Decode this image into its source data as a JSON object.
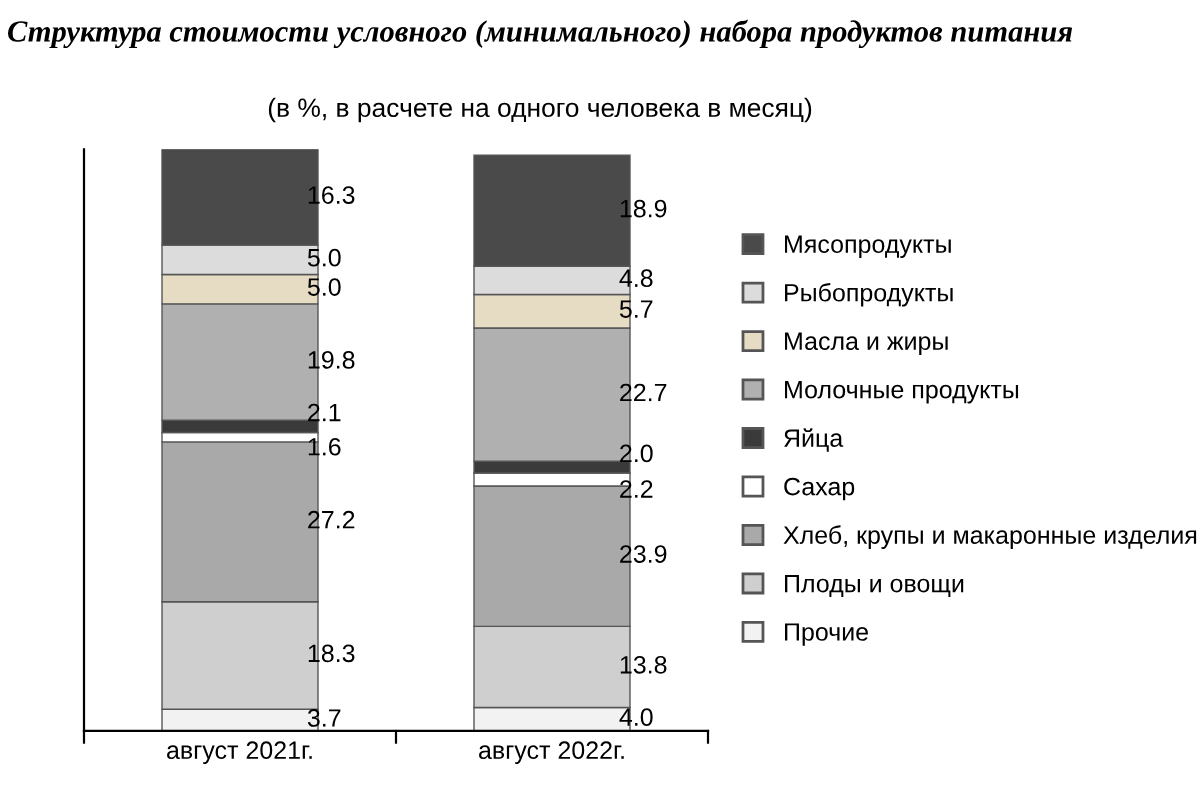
{
  "chart_data": {
    "type": "bar",
    "stacked": true,
    "title": "Структура стоимости условного (минимального) набора продуктов питания",
    "subtitle": "(в %, в расчете на одного человека в месяц)",
    "categories": [
      "август 2021г.",
      "август 2022г."
    ],
    "series": [
      {
        "name": "Прочие",
        "color": "#f2f2f2",
        "values": [
          3.7,
          4.0
        ],
        "value_labels": [
          "3.7",
          "4.0"
        ]
      },
      {
        "name": "Плоды и овощи",
        "color": "#cfcfcf",
        "values": [
          18.3,
          13.8
        ],
        "value_labels": [
          "18.3",
          "13.8"
        ]
      },
      {
        "name": "Хлеб, крупы и макаронные изделия",
        "color": "#a9a9a9",
        "values": [
          27.2,
          23.9
        ],
        "value_labels": [
          "27.2",
          "23.9"
        ]
      },
      {
        "name": "Сахар",
        "color": "#ffffff",
        "values": [
          1.6,
          2.2
        ],
        "value_labels": [
          "1.6",
          "2.2"
        ]
      },
      {
        "name": "Яйца",
        "color": "#3a3a3a",
        "values": [
          2.1,
          2.0
        ],
        "value_labels": [
          "2.1",
          "2.0"
        ]
      },
      {
        "name": "Молочные продукты",
        "color": "#b0b0b0",
        "values": [
          19.8,
          22.7
        ],
        "value_labels": [
          "19.8",
          "22.7"
        ]
      },
      {
        "name": "Масла и жиры",
        "color": "#e6dcc4",
        "values": [
          5.0,
          5.7
        ],
        "value_labels": [
          "5.0",
          "5.7"
        ]
      },
      {
        "name": "Рыбопродукты",
        "color": "#dcdcdc",
        "values": [
          5.0,
          4.8
        ],
        "value_labels": [
          "5.0",
          "4.8"
        ]
      },
      {
        "name": "Мясопродукты",
        "color": "#4a4a4a",
        "values": [
          16.3,
          18.9
        ],
        "value_labels": [
          "16.3",
          "18.9"
        ]
      }
    ],
    "legend": "right",
    "grid": false,
    "tick_labels": "x"
  }
}
